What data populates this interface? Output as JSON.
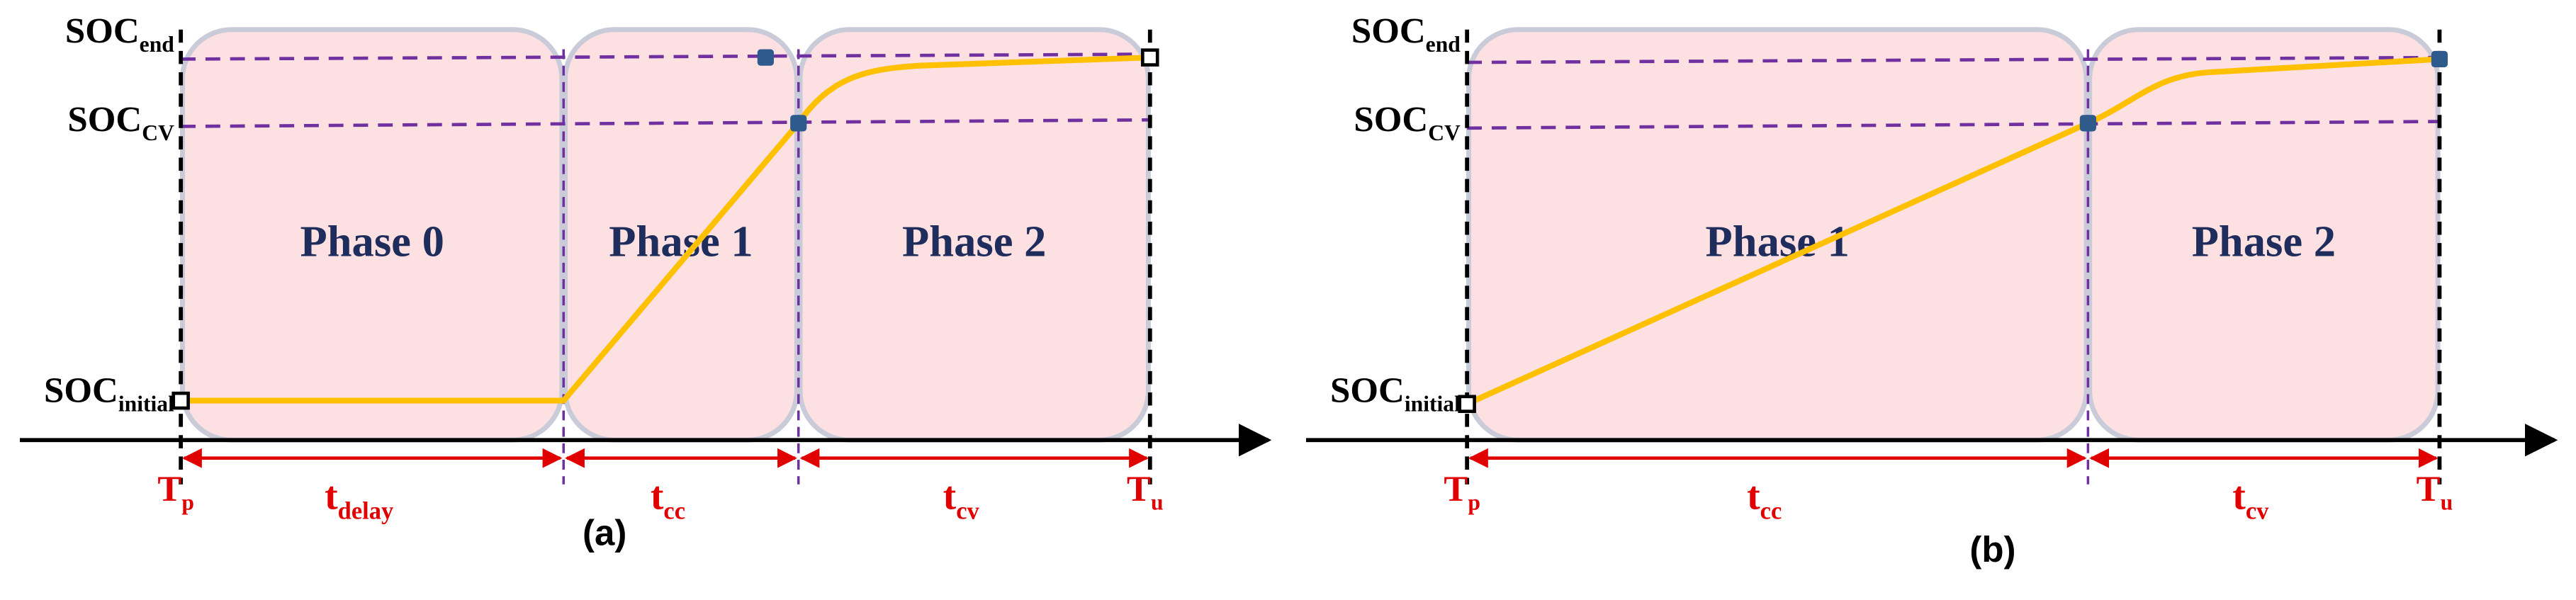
{
  "panels": [
    {
      "label": "(a)",
      "y_labels": [
        {
          "main": "SOC",
          "sub": "end"
        },
        {
          "main": "SOC",
          "sub": "CV"
        },
        {
          "main": "SOC",
          "sub": "initial"
        }
      ],
      "phases": [
        "Phase 0",
        "Phase 1",
        "Phase 2"
      ],
      "time_labels": [
        {
          "main": "T",
          "sub": "p"
        },
        {
          "main": "T",
          "sub": "u"
        }
      ],
      "durations": [
        {
          "main": "t",
          "sub": "delay"
        },
        {
          "main": "t",
          "sub": "cc"
        },
        {
          "main": "t",
          "sub": "cv"
        }
      ]
    },
    {
      "label": "(b)",
      "y_labels": [
        {
          "main": "SOC",
          "sub": "end"
        },
        {
          "main": "SOC",
          "sub": "CV"
        },
        {
          "main": "SOC",
          "sub": "initial"
        }
      ],
      "phases": [
        "Phase 1",
        "Phase 2"
      ],
      "time_labels": [
        {
          "main": "T",
          "sub": "p"
        },
        {
          "main": "T",
          "sub": "u"
        }
      ],
      "durations": [
        {
          "main": "t",
          "sub": "cc"
        },
        {
          "main": "t",
          "sub": "cv"
        }
      ]
    }
  ]
}
